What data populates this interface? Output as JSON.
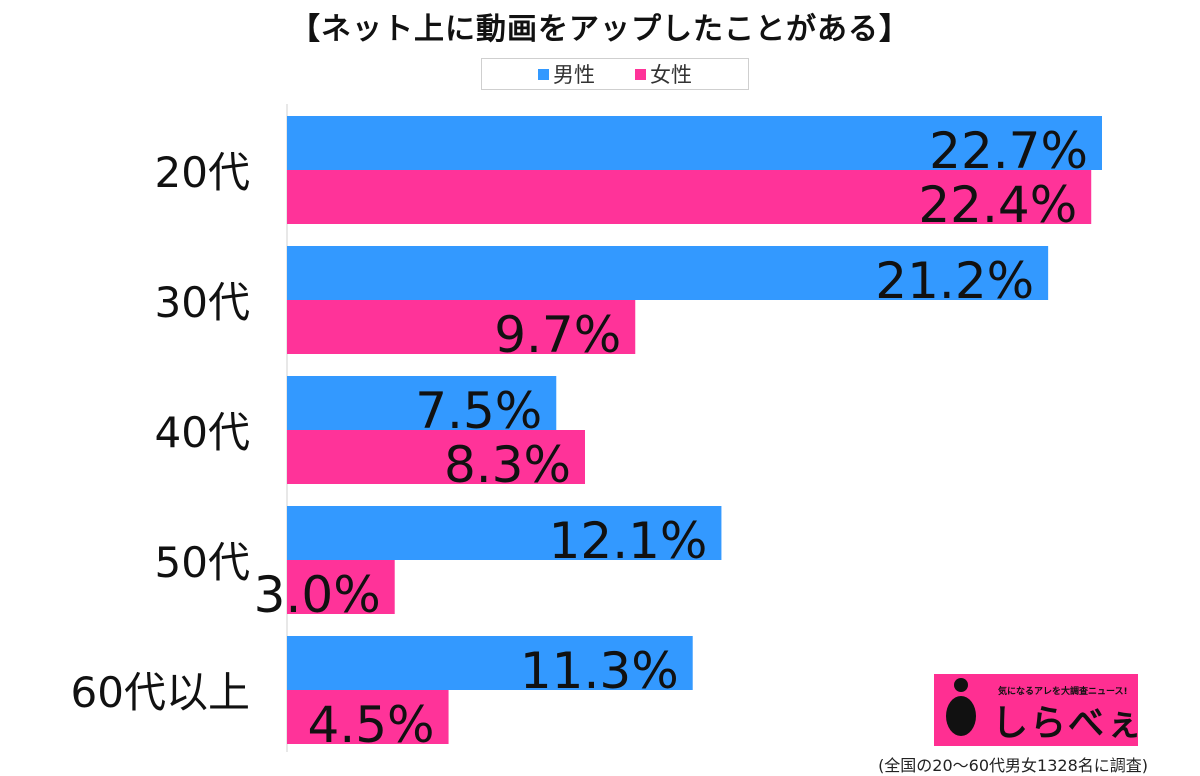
{
  "chart_data": {
    "type": "bar",
    "orientation": "horizontal",
    "title": "【ネット上に動画をアップしたことがある】",
    "categories": [
      "20代",
      "30代",
      "40代",
      "50代",
      "60代以上"
    ],
    "series": [
      {
        "name": "男性",
        "color": "#3399ff",
        "values": [
          22.7,
          21.2,
          7.5,
          12.1,
          11.3
        ],
        "labels": [
          "22.7%",
          "21.2%",
          "7.5%",
          "12.1%",
          "11.3%"
        ]
      },
      {
        "name": "女性",
        "color": "#ff3399",
        "values": [
          22.4,
          9.7,
          8.3,
          3.0,
          4.5
        ],
        "labels": [
          "22.4%",
          "9.7%",
          "8.3%",
          "3.0%",
          "4.5%"
        ]
      }
    ],
    "xlim": [
      0,
      22.7
    ],
    "unit": "%",
    "grid": false,
    "legend": "top-center"
  },
  "logo": {
    "tagline": "気になるアレを大調査ニュース!",
    "name": "しらべぇ"
  },
  "footnote": "(全国の20〜60代男女1328名に調査)"
}
